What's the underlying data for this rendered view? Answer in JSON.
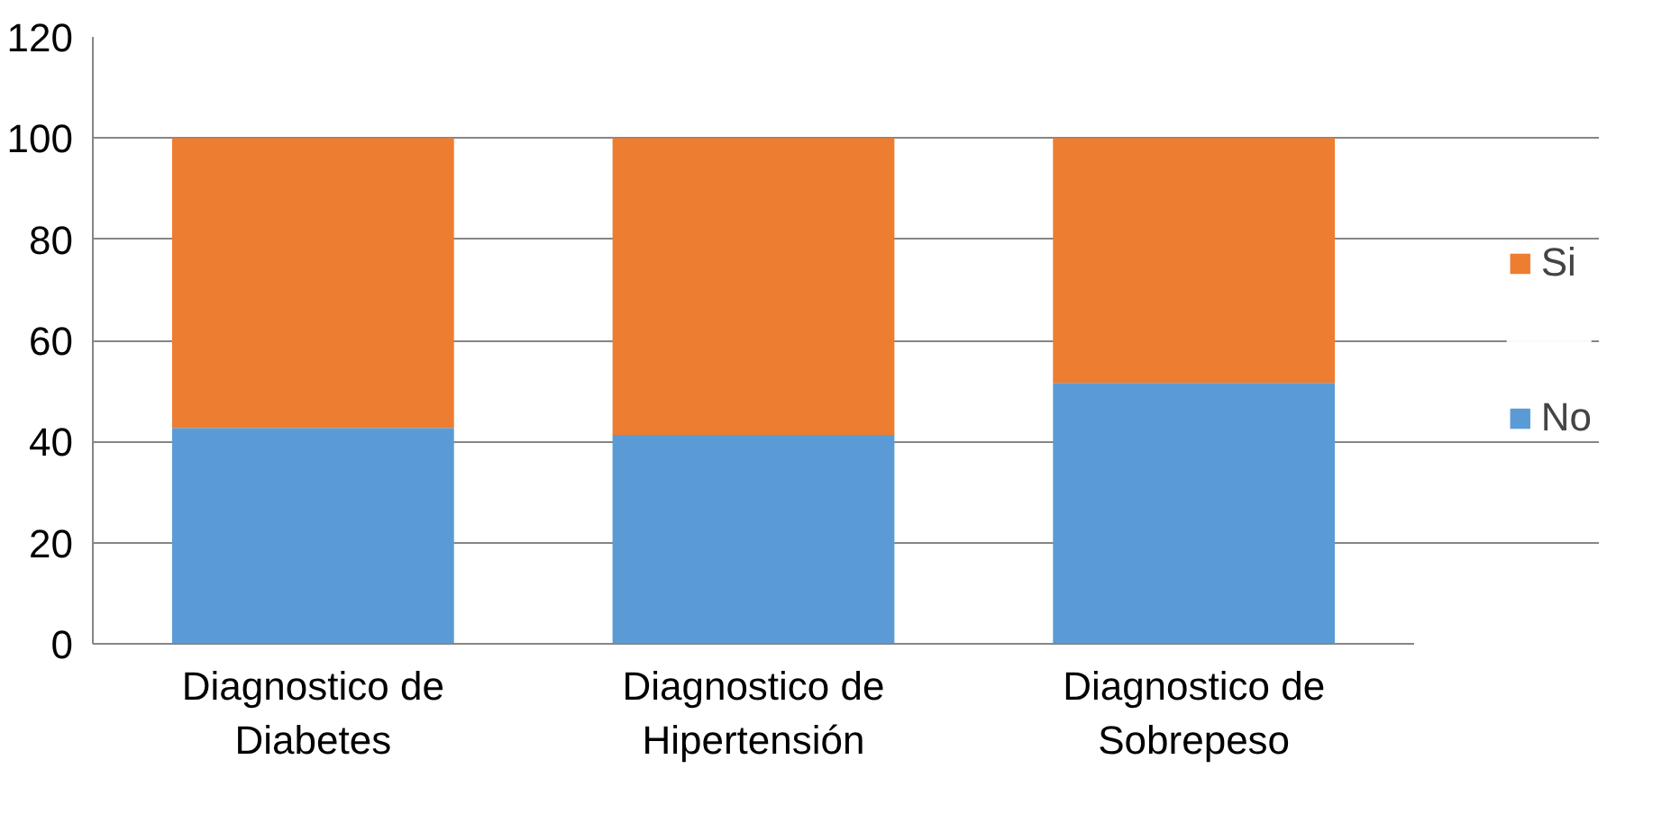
{
  "chart_data": {
    "type": "bar",
    "stacked": true,
    "categories": [
      "Diagnostico de\nDiabetes",
      "Diagnostico de\nHipertensión",
      "Diagnostico de\nSobrepeso"
    ],
    "series": [
      {
        "name": "No",
        "color": "#5b9bd5",
        "values": [
          42.7,
          41.3,
          51.6
        ]
      },
      {
        "name": "Si",
        "color": "#ed7d31",
        "values": [
          57.3,
          58.7,
          48.4
        ]
      }
    ],
    "ylim": [
      0,
      120
    ],
    "yticks": [
      0,
      20,
      40,
      60,
      80,
      100,
      120
    ],
    "grid": "y",
    "legend": "right"
  }
}
